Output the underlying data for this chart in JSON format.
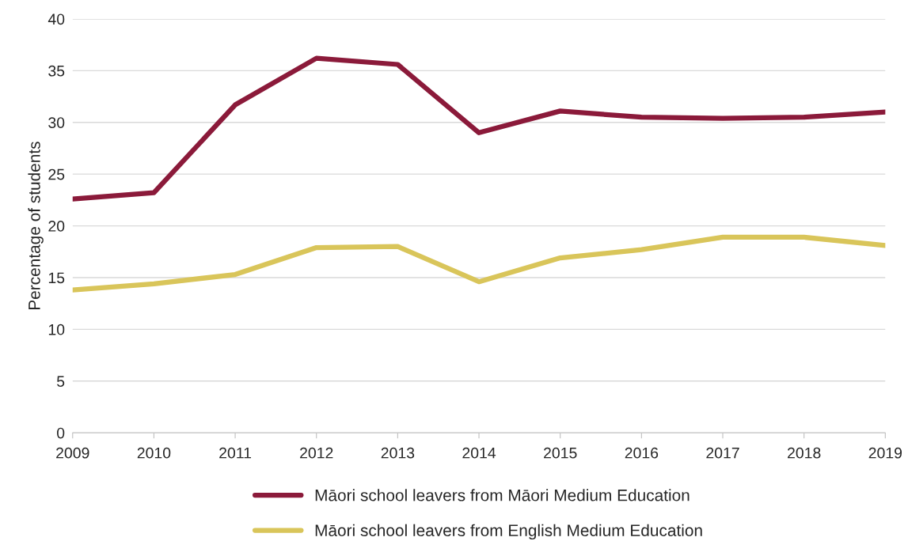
{
  "chart_data": {
    "type": "line",
    "ylabel": "Percentage of students",
    "x": [
      2009,
      2010,
      2011,
      2012,
      2013,
      2014,
      2015,
      2016,
      2017,
      2018,
      2019
    ],
    "series": [
      {
        "name": "Māori school leavers from Māori Medium Education",
        "color": "#8b1a3a",
        "values": [
          22.6,
          23.2,
          31.7,
          36.2,
          35.6,
          29.0,
          31.1,
          30.5,
          30.4,
          30.5,
          31.0
        ]
      },
      {
        "name": "Māori school leavers from English Medium Education",
        "color": "#d9c55a",
        "values": [
          13.8,
          14.4,
          15.3,
          17.9,
          18.0,
          14.6,
          16.9,
          17.7,
          18.9,
          18.9,
          18.1
        ]
      }
    ],
    "xlim": [
      2009,
      2019
    ],
    "xticks": [
      2009,
      2010,
      2011,
      2012,
      2013,
      2014,
      2015,
      2016,
      2017,
      2018,
      2019
    ],
    "ylim": [
      0,
      40
    ],
    "yticks": [
      0,
      5,
      10,
      15,
      20,
      25,
      30,
      35,
      40
    ],
    "grid": "y",
    "legend": "bottom",
    "line_style": "solid",
    "marker": "none"
  }
}
